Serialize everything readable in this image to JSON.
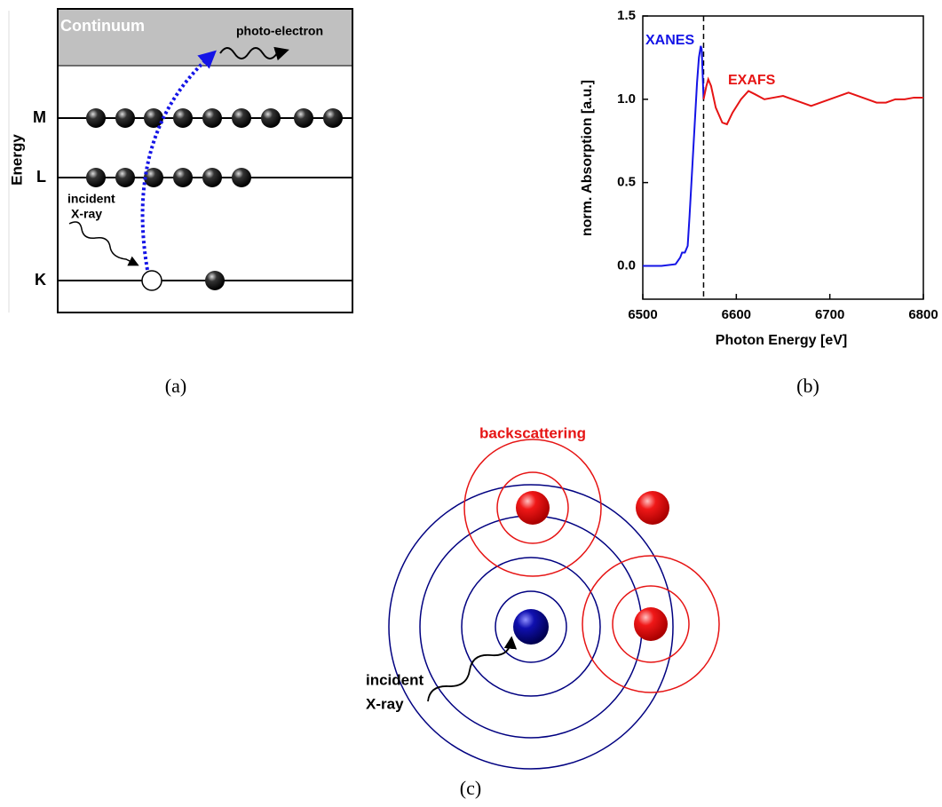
{
  "panel_a": {
    "continuum": "Continuum",
    "photoelectron": "photo-electron",
    "axis_label": "Energy",
    "levels": [
      "M",
      "L",
      "K"
    ],
    "incident": [
      "incident",
      "X-ray"
    ]
  },
  "chart_data": {
    "type": "line",
    "x_label": "Photon Energy [eV]",
    "y_label": "norm. Absorption [a.u.]",
    "x": [
      6500,
      6520,
      6535,
      6540,
      6542,
      6545,
      6548,
      6550,
      6553,
      6556,
      6558,
      6560,
      6562,
      6563,
      6565,
      6568,
      6570,
      6573,
      6578,
      6585,
      6590,
      6596,
      6605,
      6613,
      6620,
      6630,
      6640,
      6650,
      6660,
      6670,
      6680,
      6690,
      6700,
      6710,
      6720,
      6730,
      6740,
      6750,
      6760,
      6770,
      6780,
      6790,
      6800
    ],
    "series": [
      {
        "name": "XANES",
        "color": "#1414e6",
        "values": [
          0,
          0,
          0.01,
          0.05,
          0.08,
          0.08,
          0.12,
          0.3,
          0.6,
          0.9,
          1.1,
          1.25,
          1.32,
          1.3,
          1.0,
          null,
          null,
          null,
          null,
          null,
          null,
          null,
          null,
          null,
          null,
          null,
          null,
          null,
          null,
          null,
          null,
          null,
          null,
          null,
          null,
          null,
          null,
          null,
          null,
          null,
          null,
          null,
          null
        ]
      },
      {
        "name": "EXAFS",
        "color": "#e61414",
        "values": [
          null,
          null,
          null,
          null,
          null,
          null,
          null,
          null,
          null,
          null,
          null,
          null,
          null,
          null,
          1.0,
          1.08,
          1.12,
          1.08,
          0.95,
          0.86,
          0.85,
          0.92,
          1.0,
          1.05,
          1.03,
          1.0,
          1.01,
          1.02,
          1.0,
          0.98,
          0.96,
          0.98,
          1.0,
          1.02,
          1.04,
          1.02,
          1.0,
          0.98,
          0.98,
          1.0,
          1.0,
          1.01,
          1.01
        ]
      }
    ],
    "xlim": [
      6500,
      6800
    ],
    "ylim": [
      -0.2,
      1.5
    ],
    "xticks": [
      6500,
      6600,
      6700,
      6800
    ],
    "yticks": [
      {
        "value": 0,
        "label": "0.0"
      },
      {
        "value": 0.5,
        "label": "0.5"
      },
      {
        "value": 1,
        "label": "1.0"
      },
      {
        "value": 1.5,
        "label": "1.5"
      }
    ],
    "edge_line_x": 6565,
    "grid": false
  },
  "panel_c": {
    "title": "backscattering",
    "incident": [
      "incident",
      "X-ray"
    ]
  },
  "captions": [
    "(a)",
    "(b)",
    "(c)"
  ]
}
